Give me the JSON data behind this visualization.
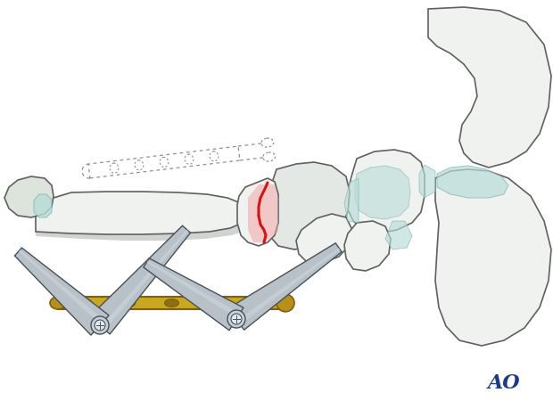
{
  "figsize": [
    6.2,
    4.59
  ],
  "dpi": 100,
  "bg_color": "#ffffff",
  "ao_text": "AO",
  "ao_color": "#1a3a8a",
  "ao_fontsize": 16,
  "bone_fill": "#f0f2f0",
  "bone_fill2": "#e4e8e4",
  "bone_edge": "#606060",
  "bone_edge_lw": 1.2,
  "plate_color": "#c8a820",
  "plate_edge": "#806010",
  "tool_fill": "#b8c0c8",
  "tool_fill_light": "#d0d8e0",
  "tool_edge": "#485058",
  "red_color": "#dd1111",
  "cart_color": "#b8dcd8",
  "cart_edge": "#88b8b4",
  "shadow_color": "#d0d4d0",
  "gray_dot": "#909090"
}
